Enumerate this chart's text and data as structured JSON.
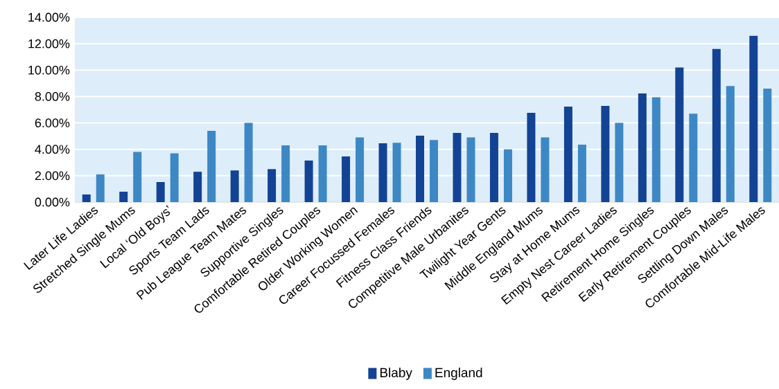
{
  "chart_data": {
    "type": "bar",
    "categories": [
      "Later Life Ladies",
      "Stretched Single Mums",
      "Local ‘Old Boys’",
      "Sports Team Lads",
      "Pub League Team Mates",
      "Supportive Singles",
      "Comfortable Retired Couples",
      "Older Working Women",
      "Career Focussed Females",
      "Fitness Class Friends",
      "Competitive Male Urbanites",
      "Twilight Year Gents",
      "Middle England Mums",
      "Stay at Home Mums",
      "Empty Nest Career Ladies",
      "Retirement Home Singles",
      "Early Retirement Couples",
      "Settling Down Males",
      "Comfortable Mid-Life Males"
    ],
    "series": [
      {
        "name": "Blaby",
        "color": "#134394",
        "values": [
          0.58,
          0.79,
          1.52,
          2.3,
          2.4,
          2.5,
          3.15,
          3.46,
          4.46,
          5.03,
          5.24,
          5.24,
          6.76,
          7.24,
          7.29,
          8.23,
          10.2,
          11.6,
          12.6
        ]
      },
      {
        "name": "England",
        "color": "#3d88c4",
        "values": [
          2.1,
          3.8,
          3.7,
          5.4,
          6.0,
          4.3,
          4.3,
          4.9,
          4.5,
          4.7,
          4.9,
          4.0,
          4.9,
          4.35,
          6.0,
          7.95,
          6.7,
          8.8,
          8.6
        ]
      }
    ],
    "ylim": [
      0,
      14
    ],
    "yticks": [
      {
        "value": 0,
        "label": "0.00%"
      },
      {
        "value": 2,
        "label": "2.00%"
      },
      {
        "value": 4,
        "label": "4.00%"
      },
      {
        "value": 6,
        "label": "6.00%"
      },
      {
        "value": 8,
        "label": "8.00%"
      },
      {
        "value": 10,
        "label": "10.00%"
      },
      {
        "value": 12,
        "label": "12.00%"
      },
      {
        "value": 14,
        "label": "14.00%"
      }
    ],
    "grid": "y",
    "legend": "bottom"
  }
}
